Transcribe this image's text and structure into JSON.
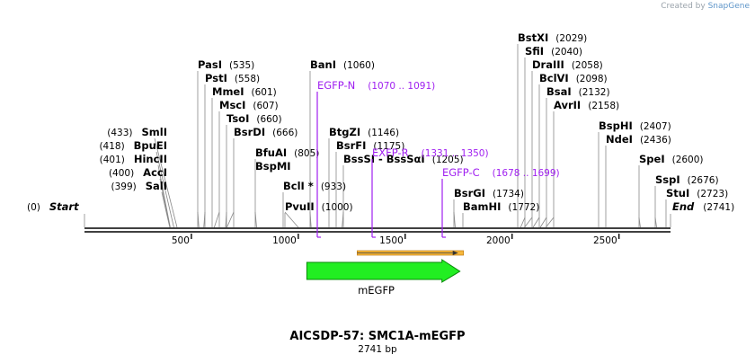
{
  "header": {
    "credit": "Created by",
    "brand": "SnapGene"
  },
  "plasmid": {
    "name": "AICSDP-57: SMC1A-mEGFP",
    "length_label": "2741 bp",
    "length": 2741
  },
  "axis": {
    "ticks": [
      500,
      1000,
      1500,
      2000,
      2500
    ]
  },
  "start_label": {
    "name": "Start",
    "pos": "(0)"
  },
  "end_label": {
    "name": "End",
    "pos": "(2741)"
  },
  "sites_left": [
    {
      "name": "SmlI",
      "pos": "(433)",
      "bp": 433
    },
    {
      "name": "BpuEI",
      "pos": "(418)",
      "bp": 418
    },
    {
      "name": "HincII",
      "pos": "(401)",
      "bp": 401
    },
    {
      "name": "AccI",
      "pos": "(400)",
      "bp": 400
    },
    {
      "name": "SalI",
      "pos": "(399)",
      "bp": 399
    }
  ],
  "sites_top": [
    {
      "name": "PasI",
      "pos": "(535)",
      "bp": 535
    },
    {
      "name": "PstI",
      "pos": "(558)",
      "bp": 558
    },
    {
      "name": "MmeI",
      "pos": "(601)",
      "bp": 601
    },
    {
      "name": "MscI",
      "pos": "(607)",
      "bp": 607
    },
    {
      "name": "TsoI",
      "pos": "(660)",
      "bp": 660
    },
    {
      "name": "BsrDI",
      "pos": "(666)",
      "bp": 666
    },
    {
      "name": "BfuAI",
      "pos": "(805)",
      "bp": 805
    },
    {
      "name": "BspMI",
      "pos": "",
      "bp": 805
    },
    {
      "name": "BclI *",
      "pos": "(933)",
      "bp": 933
    },
    {
      "name": "PvuII",
      "pos": "(1000)",
      "bp": 1000
    },
    {
      "name": "BanI",
      "pos": "(1060)",
      "bp": 1060
    },
    {
      "name": "BtgZI",
      "pos": "(1146)",
      "bp": 1146
    },
    {
      "name": "BsrFI",
      "pos": "(1175)",
      "bp": 1175
    },
    {
      "name": "BssSI - BssSαI",
      "pos": "(1205)",
      "bp": 1205
    },
    {
      "name": "BsrGI",
      "pos": "(1734)",
      "bp": 1734
    },
    {
      "name": "BamHI",
      "pos": "(1772)",
      "bp": 1772
    }
  ],
  "sites_right": [
    {
      "name": "BstXI",
      "pos": "(2029)",
      "bp": 2029
    },
    {
      "name": "SfiI",
      "pos": "(2040)",
      "bp": 2040
    },
    {
      "name": "DraIII",
      "pos": "(2058)",
      "bp": 2058
    },
    {
      "name": "BclVI",
      "pos": "(2098)",
      "bp": 2098
    },
    {
      "name": "BsaI",
      "pos": "(2132)",
      "bp": 2132
    },
    {
      "name": "AvrII",
      "pos": "(2158)",
      "bp": 2158
    },
    {
      "name": "BspHI",
      "pos": "(2407)",
      "bp": 2407
    },
    {
      "name": "NdeI",
      "pos": "(2436)",
      "bp": 2436
    },
    {
      "name": "SpeI",
      "pos": "(2600)",
      "bp": 2600
    },
    {
      "name": "SspI",
      "pos": "(2676)",
      "bp": 2676
    },
    {
      "name": "StuI",
      "pos": "(2723)",
      "bp": 2723
    }
  ],
  "primers": [
    {
      "name": "EGFP-N",
      "range": "(1070 .. 1091)",
      "start": 1070,
      "end": 1091
    },
    {
      "name": "EXFP-R",
      "range": "(1331 .. 1350)",
      "start": 1331,
      "end": 1350
    },
    {
      "name": "EGFP-C",
      "range": "(1678 .. 1699)",
      "start": 1678,
      "end": 1699
    }
  ],
  "feature": {
    "name": "mEGFP",
    "start": 1040,
    "end": 1756
  },
  "colors": {
    "primer": "#a020f0",
    "feature": "#22ee22",
    "orf": "#f6b73c",
    "line": "#000000",
    "stick": "#888888"
  }
}
